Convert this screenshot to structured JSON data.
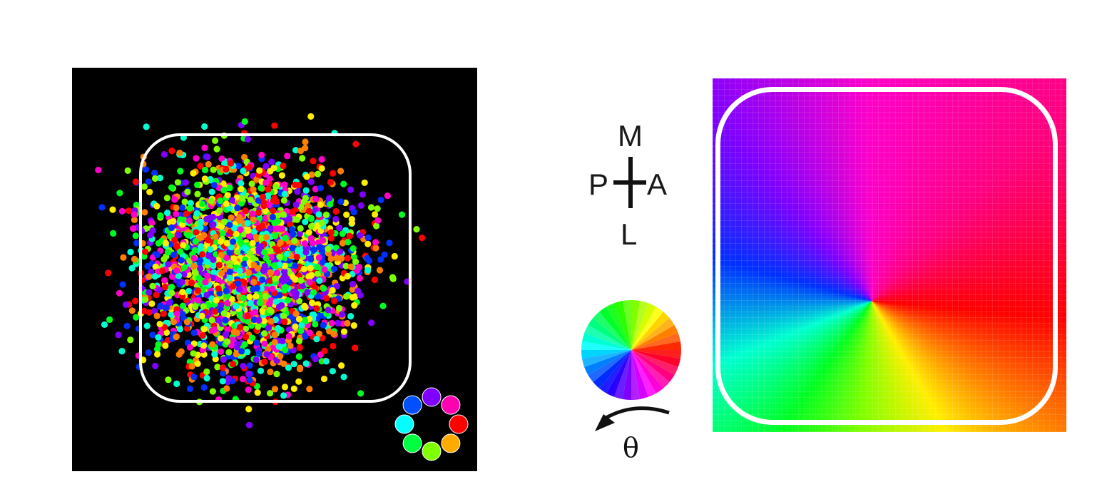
{
  "orientation": {
    "top": "M",
    "left": "P",
    "right": "A",
    "bottom": "L"
  },
  "angle_symbol": "θ",
  "colors": {
    "background_left": "#000000",
    "arena_outline": "#ffffff",
    "hue_sequence": [
      "#ff0000",
      "#ff8000",
      "#ffee00",
      "#80ff00",
      "#00ff20",
      "#00ffd0",
      "#0030ff",
      "#8000ff",
      "#ff00c8"
    ]
  },
  "legend_dots": [
    "#8000ff",
    "#ff00b0",
    "#ff0000",
    "#ffaa00",
    "#80ff00",
    "#00ff40",
    "#00ffff",
    "#0050ff"
  ],
  "icons": [
    "color-wheel-icon",
    "rotation-arrow-icon",
    "orientation-cross-icon"
  ]
}
